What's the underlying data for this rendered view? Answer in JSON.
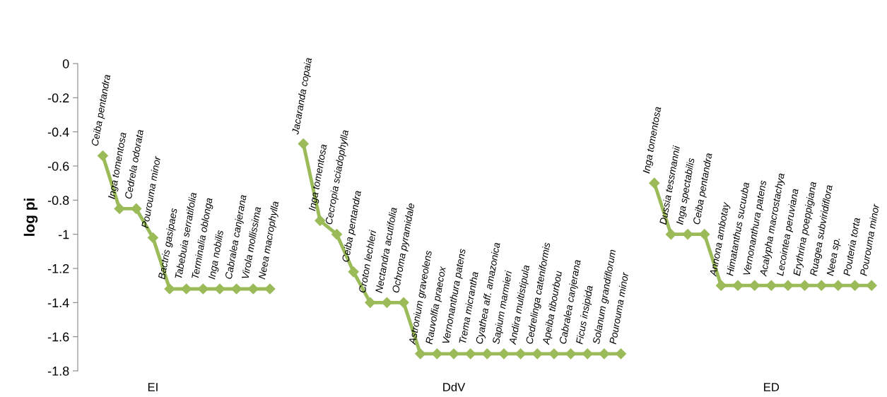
{
  "chart_data": {
    "type": "line",
    "ylabel": "log pi",
    "categories": [
      null,
      null,
      null,
      "EI",
      null,
      null,
      null,
      null,
      null,
      null,
      null,
      null,
      null,
      null,
      null,
      null,
      null,
      null,
      null,
      null,
      null,
      "DdV",
      null,
      null,
      null,
      null,
      null,
      null,
      null,
      null,
      null,
      null,
      null,
      null,
      null,
      null,
      null,
      null,
      null,
      null,
      "ED",
      null,
      null,
      null,
      null,
      null,
      null
    ],
    "series": [
      {
        "color": "#9bbb59",
        "values": [
          -0.54,
          -0.85,
          -0.85,
          -1.02,
          -1.32,
          -1.32,
          -1.32,
          -1.32,
          -1.32,
          -1.32,
          -1.32,
          null,
          -0.47,
          -0.92,
          -1.0,
          -1.22,
          -1.4,
          -1.4,
          -1.4,
          -1.7,
          -1.7,
          -1.7,
          -1.7,
          -1.7,
          -1.7,
          -1.7,
          -1.7,
          -1.7,
          -1.7,
          -1.7,
          -1.7,
          -1.7,
          null,
          -0.7,
          -1.0,
          -1.0,
          -1.0,
          -1.3,
          -1.3,
          -1.3,
          -1.3,
          -1.3,
          -1.3,
          -1.3,
          -1.3,
          -1.3,
          -1.3
        ],
        "value_labels": [
          "Ceiba pentandra",
          "Inga tomentosa",
          "Cedrela odorata",
          "Pourouma minor",
          "Bactris gasipaes",
          "Tabebuia serratifolia",
          "Terminalia oblonga",
          "Inga nobilis",
          "Cabralea canjerana",
          "Virola mollissima",
          "Neea macrophylla",
          null,
          "Jacaranda copaia",
          "Inga tomentosa",
          "Cecropia sciadophylla",
          "Ceiba pentandra",
          "Croton lechleri",
          "Nectandra acutifolia",
          "Ochroma pyramidale",
          "Astronium graveolens",
          "Rauvolfia praecox",
          "Vernonanthura patens",
          "Trema micrantha",
          "Cyathea aff. amazonica",
          "Sapium marmieri",
          "Andira multistipula",
          "Cedrelinga cateniformis",
          "Apeiba tibourbou",
          "Cabralea canjerana",
          "Ficus insipida",
          "Solanum grandiflorum",
          "Pourouma minor",
          null,
          "Inga tomentosa",
          "Dussia tessmannii",
          "Inga spectabilis",
          "Ceiba pentandra",
          "Annona ambotay",
          "Himatanthus sucuuba",
          "Vernonanthura patens",
          "Acalypha macrostachya",
          "Lecointea peruviana",
          "Erythrina poeppigiana",
          "Ruagea subviridiflora",
          "Neea sp.",
          "Pouteria torta",
          "Pourouma minor"
        ]
      }
    ],
    "ylim": [
      -1.8,
      0
    ],
    "yticks": [
      {
        "value": -1.8,
        "label": "-1.8"
      },
      {
        "value": -1.6,
        "label": "-1.6"
      },
      {
        "value": -1.4,
        "label": "-1.4"
      },
      {
        "value": -1.2,
        "label": "-1.2"
      },
      {
        "value": -1,
        "label": "-1"
      },
      {
        "value": -0.8,
        "label": "-0.8"
      },
      {
        "value": -0.6,
        "label": "-0.6"
      },
      {
        "value": -0.4,
        "label": "-0.4"
      },
      {
        "value": -0.2,
        "label": "-0.2"
      },
      {
        "value": 0,
        "label": "0"
      }
    ],
    "marker": "diamond",
    "line_style": "solid",
    "grid": false
  }
}
